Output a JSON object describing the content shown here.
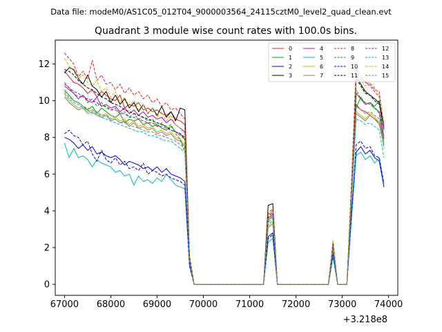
{
  "chart_data": {
    "type": "line",
    "suptitle": "Data file: modeM0/AS1C05_012T04_9000003564_24115cztM0_level2_quad_clean.evt",
    "title": "Quadrant 3 module wise count rates with 100.0s bins.",
    "xlabel": "",
    "ylabel": "",
    "x_offset_label": "+3.218e8",
    "xlim": [
      66800,
      74200
    ],
    "ylim": [
      -0.6,
      13.3
    ],
    "xticks": [
      67000,
      68000,
      69000,
      70000,
      71000,
      72000,
      73000,
      74000
    ],
    "yticks": [
      0,
      2,
      4,
      6,
      8,
      10,
      12
    ],
    "legend_position": "top-right",
    "legend_columns": 4,
    "x": [
      67000,
      67100,
      67200,
      67300,
      67400,
      67500,
      67600,
      67700,
      67800,
      67900,
      68000,
      68100,
      68200,
      68300,
      68400,
      68500,
      68600,
      68700,
      68800,
      68900,
      69000,
      69100,
      69200,
      69300,
      69400,
      69500,
      69600,
      69700,
      69800,
      69900,
      70000,
      70100,
      70200,
      70300,
      70400,
      70500,
      70600,
      70700,
      70800,
      70900,
      71000,
      71100,
      71200,
      71300,
      71400,
      71500,
      71600,
      71700,
      71800,
      71900,
      72000,
      72100,
      72200,
      72300,
      72400,
      72500,
      72600,
      72700,
      72800,
      72900,
      73000,
      73100,
      73200,
      73300,
      73400,
      73500,
      73600,
      73700,
      73800,
      73900
    ],
    "series": [
      {
        "name": "0",
        "color": "#e31a1c",
        "dash": "solid",
        "values": [
          11.6,
          11.3,
          11.0,
          10.9,
          10.7,
          10.4,
          10.6,
          10.2,
          10.5,
          10.3,
          10.1,
          10.0,
          10.3,
          9.6,
          9.8,
          9.7,
          9.9,
          9.5,
          9.6,
          9.4,
          9.5,
          9.3,
          9.2,
          9.4,
          9.0,
          8.9,
          8.7,
          1.5,
          0,
          0,
          0,
          0,
          0,
          0,
          0,
          0,
          0,
          0,
          0,
          0,
          0,
          0,
          0,
          0,
          3.8,
          4.0,
          0,
          0,
          0,
          0,
          0,
          0,
          0,
          0,
          0,
          0,
          0,
          0,
          2.2,
          0,
          0,
          0,
          5.2,
          9.8,
          9.5,
          9.4,
          9.2,
          9.0,
          8.8,
          8.1
        ]
      },
      {
        "name": "1",
        "color": "#00a000",
        "dash": "solid",
        "values": [
          10.6,
          10.3,
          10.0,
          9.9,
          9.7,
          9.5,
          9.7,
          9.3,
          9.6,
          9.4,
          9.2,
          9.1,
          9.3,
          8.8,
          9.0,
          8.9,
          9.0,
          8.7,
          8.8,
          8.6,
          8.7,
          8.5,
          8.4,
          8.6,
          8.3,
          8.2,
          7.9,
          1.4,
          0,
          0,
          0,
          0,
          0,
          0,
          0,
          0,
          0,
          0,
          0,
          0,
          0,
          0,
          0,
          0,
          3.5,
          3.7,
          0,
          0,
          0,
          0,
          0,
          0,
          0,
          0,
          0,
          0,
          0,
          0,
          2.1,
          0,
          0,
          0,
          4.9,
          9.6,
          10.2,
          9.8,
          9.9,
          9.7,
          10.0,
          7.9
        ]
      },
      {
        "name": "2",
        "color": "#0000e0",
        "dash": "solid",
        "values": [
          8.0,
          7.9,
          7.7,
          7.4,
          7.6,
          7.3,
          7.5,
          7.1,
          7.2,
          7.0,
          6.9,
          7.0,
          6.8,
          6.5,
          6.7,
          6.6,
          6.5,
          6.3,
          6.4,
          6.2,
          6.4,
          6.1,
          6.3,
          6.0,
          5.9,
          5.8,
          5.6,
          1.1,
          0,
          0,
          0,
          0,
          0,
          0,
          0,
          0,
          0,
          0,
          0,
          0,
          0,
          0,
          0,
          0,
          2.6,
          2.8,
          0,
          0,
          0,
          0,
          0,
          0,
          0,
          0,
          0,
          0,
          0,
          0,
          1.7,
          0,
          0,
          0,
          3.9,
          7.2,
          7.5,
          7.1,
          7.3,
          6.9,
          6.7,
          5.3
        ]
      },
      {
        "name": "3",
        "color": "#000000",
        "dash": "solid",
        "values": [
          11.5,
          11.8,
          11.7,
          11.2,
          10.9,
          11.4,
          10.8,
          10.6,
          10.2,
          10.5,
          9.9,
          10.3,
          9.8,
          10.1,
          9.6,
          9.9,
          9.4,
          9.8,
          9.3,
          9.6,
          9.2,
          9.7,
          9.1,
          9.4,
          8.9,
          9.6,
          9.5,
          1.5,
          0,
          0,
          0,
          0,
          0,
          0,
          0,
          0,
          0,
          0,
          0,
          0,
          0,
          0,
          0,
          0,
          4.3,
          4.4,
          0,
          0,
          0,
          0,
          0,
          0,
          0,
          0,
          0,
          0,
          0,
          0,
          2.3,
          0,
          0,
          0,
          5.4,
          11.4,
          10.9,
          10.5,
          10.3,
          10.1,
          9.9,
          8.6
        ]
      },
      {
        "name": "4",
        "color": "#c000c0",
        "dash": "solid",
        "values": [
          10.8,
          10.6,
          10.4,
          10.1,
          10.3,
          10.0,
          9.9,
          10.2,
          9.7,
          9.8,
          9.6,
          9.7,
          9.4,
          9.6,
          9.3,
          9.5,
          9.2,
          9.4,
          9.1,
          9.2,
          9.0,
          9.1,
          8.8,
          9.0,
          8.7,
          8.5,
          8.3,
          1.4,
          0,
          0,
          0,
          0,
          0,
          0,
          0,
          0,
          0,
          0,
          0,
          0,
          0,
          0,
          0,
          0,
          3.6,
          3.8,
          0,
          0,
          0,
          0,
          0,
          0,
          0,
          0,
          0,
          0,
          0,
          0,
          2.1,
          0,
          0,
          0,
          5.0,
          10.4,
          10.1,
          9.8,
          9.9,
          9.6,
          9.4,
          8.0
        ]
      },
      {
        "name": "5",
        "color": "#00b8b8",
        "dash": "solid",
        "values": [
          7.7,
          6.9,
          7.4,
          6.9,
          7.0,
          6.8,
          6.4,
          6.8,
          6.6,
          6.5,
          6.4,
          6.1,
          6.2,
          5.9,
          6.0,
          5.4,
          5.9,
          5.6,
          5.7,
          5.5,
          5.8,
          5.6,
          6.0,
          5.7,
          5.4,
          5.3,
          5.2,
          1.0,
          0,
          0,
          0,
          0,
          0,
          0,
          0,
          0,
          0,
          0,
          0,
          0,
          0,
          0,
          0,
          0,
          2.3,
          2.5,
          0,
          0,
          0,
          0,
          0,
          0,
          0,
          0,
          0,
          0,
          0,
          0,
          1.5,
          0,
          0,
          0,
          3.6,
          7.0,
          7.2,
          6.8,
          7.0,
          6.6,
          6.9,
          5.4
        ]
      },
      {
        "name": "6",
        "color": "#c8b400",
        "dash": "solid",
        "values": [
          10.3,
          10.0,
          9.8,
          9.6,
          9.7,
          9.4,
          9.5,
          9.3,
          9.2,
          9.3,
          9.0,
          9.1,
          8.9,
          9.0,
          8.7,
          8.9,
          8.6,
          8.7,
          8.5,
          8.6,
          8.3,
          8.4,
          8.2,
          8.3,
          8.0,
          7.9,
          7.6,
          1.3,
          0,
          0,
          0,
          0,
          0,
          0,
          0,
          0,
          0,
          0,
          0,
          0,
          0,
          0,
          0,
          0,
          3.2,
          3.4,
          0,
          0,
          0,
          0,
          0,
          0,
          0,
          0,
          0,
          0,
          0,
          0,
          2.0,
          0,
          0,
          0,
          4.7,
          9.4,
          9.2,
          9.0,
          9.3,
          9.1,
          8.8,
          7.7
        ]
      },
      {
        "name": "7",
        "color": "#808080",
        "dash": "solid",
        "values": [
          10.2,
          9.9,
          9.7,
          9.5,
          9.6,
          9.3,
          9.4,
          9.2,
          9.1,
          9.2,
          8.9,
          9.0,
          8.8,
          8.9,
          8.6,
          8.8,
          8.5,
          8.6,
          8.4,
          8.5,
          8.2,
          8.3,
          8.1,
          8.2,
          7.9,
          7.8,
          7.5,
          1.3,
          0,
          0,
          0,
          0,
          0,
          0,
          0,
          0,
          0,
          0,
          0,
          0,
          0,
          0,
          0,
          0,
          3.1,
          3.3,
          0,
          0,
          0,
          0,
          0,
          0,
          0,
          0,
          0,
          0,
          0,
          0,
          1.9,
          0,
          0,
          0,
          4.6,
          9.3,
          9.1,
          8.9,
          9.2,
          9.0,
          8.7,
          7.6
        ]
      },
      {
        "name": "8",
        "color": "#e31a1c",
        "dash": "dashed",
        "values": [
          12.6,
          12.3,
          12.0,
          11.3,
          11.6,
          11.2,
          12.2,
          11.1,
          11.4,
          10.9,
          11.0,
          10.6,
          10.9,
          10.4,
          10.7,
          10.3,
          10.5,
          10.1,
          10.3,
          9.9,
          10.1,
          9.7,
          9.9,
          9.5,
          9.6,
          9.3,
          9.0,
          1.6,
          0,
          0,
          0,
          0,
          0,
          0,
          0,
          0,
          0,
          0,
          0,
          0,
          0,
          0,
          0,
          0,
          3.9,
          4.1,
          0,
          0,
          0,
          0,
          0,
          0,
          0,
          0,
          0,
          0,
          0,
          0,
          2.3,
          0,
          0,
          0,
          5.6,
          11.9,
          11.4,
          11.0,
          10.8,
          10.5,
          10.2,
          8.8
        ]
      },
      {
        "name": "9",
        "color": "#00a000",
        "dash": "dashed",
        "values": [
          11.0,
          10.7,
          10.4,
          10.2,
          10.3,
          9.9,
          10.1,
          9.7,
          9.9,
          9.6,
          9.5,
          9.6,
          9.3,
          9.4,
          9.1,
          9.3,
          9.0,
          9.1,
          8.9,
          9.0,
          8.6,
          8.8,
          8.5,
          8.7,
          8.2,
          7.9,
          7.2,
          1.4,
          0,
          0,
          0,
          0,
          0,
          0,
          0,
          0,
          0,
          0,
          0,
          0,
          0,
          0,
          0,
          0,
          3.5,
          3.7,
          0,
          0,
          0,
          0,
          0,
          0,
          0,
          0,
          0,
          0,
          0,
          0,
          2.1,
          0,
          0,
          0,
          5.0,
          10.6,
          10.1,
          9.9,
          9.8,
          9.6,
          9.3,
          7.4
        ]
      },
      {
        "name": "10",
        "color": "#0000e0",
        "dash": "dashed",
        "values": [
          8.2,
          8.4,
          8.1,
          8.0,
          7.6,
          7.8,
          7.1,
          6.7,
          7.3,
          6.8,
          6.6,
          6.9,
          6.5,
          6.7,
          6.3,
          6.4,
          6.2,
          6.6,
          6.0,
          6.2,
          6.1,
          5.9,
          6.0,
          5.8,
          5.7,
          5.6,
          5.4,
          1.0,
          0,
          0,
          0,
          0,
          0,
          0,
          0,
          0,
          0,
          0,
          0,
          0,
          0,
          0,
          0,
          0,
          2.5,
          2.7,
          0,
          0,
          0,
          0,
          0,
          0,
          0,
          0,
          0,
          0,
          0,
          0,
          1.6,
          0,
          0,
          0,
          3.8,
          7.6,
          7.8,
          7.4,
          7.5,
          7.0,
          6.9,
          5.5
        ]
      },
      {
        "name": "11",
        "color": "#000000",
        "dash": "dashed",
        "values": [
          11.7,
          11.6,
          11.4,
          11.1,
          10.9,
          10.7,
          10.6,
          10.4,
          10.2,
          10.1,
          9.9,
          9.8,
          9.7,
          9.5,
          9.4,
          9.3,
          9.2,
          9.1,
          9.0,
          8.9,
          8.8,
          8.7,
          8.6,
          8.4,
          8.3,
          8.2,
          8.0,
          1.4,
          0,
          0,
          0,
          0,
          0,
          0,
          0,
          0,
          0,
          0,
          0,
          0,
          0,
          0,
          0,
          0,
          3.7,
          3.9,
          0,
          0,
          0,
          0,
          0,
          0,
          0,
          0,
          0,
          0,
          0,
          0,
          2.2,
          0,
          0,
          0,
          5.3,
          11.2,
          10.8,
          10.4,
          10.3,
          10.0,
          9.8,
          8.5
        ]
      },
      {
        "name": "12",
        "color": "#c000c0",
        "dash": "dashed",
        "values": [
          10.9,
          10.7,
          10.5,
          10.4,
          10.2,
          10.1,
          10.0,
          9.9,
          9.7,
          9.7,
          9.5,
          9.5,
          9.3,
          9.3,
          9.1,
          9.1,
          9.0,
          8.9,
          8.8,
          8.8,
          8.6,
          8.6,
          8.5,
          8.4,
          8.3,
          8.1,
          7.9,
          1.4,
          0,
          0,
          0,
          0,
          0,
          0,
          0,
          0,
          0,
          0,
          0,
          0,
          0,
          0,
          0,
          0,
          3.6,
          3.8,
          0,
          0,
          0,
          0,
          0,
          0,
          0,
          0,
          0,
          0,
          0,
          0,
          2.1,
          0,
          0,
          0,
          5.1,
          11.7,
          11.3,
          11.0,
          10.9,
          10.6,
          10.5,
          8.4
        ]
      },
      {
        "name": "13",
        "color": "#00b8b8",
        "dash": "dashed",
        "values": [
          10.4,
          10.1,
          9.9,
          9.8,
          9.6,
          9.5,
          9.3,
          9.3,
          9.1,
          9.0,
          8.9,
          8.8,
          8.7,
          8.6,
          8.5,
          8.4,
          8.3,
          8.3,
          8.1,
          8.1,
          8.0,
          7.9,
          7.8,
          7.8,
          7.6,
          7.4,
          7.2,
          1.3,
          0,
          0,
          0,
          0,
          0,
          0,
          0,
          0,
          0,
          0,
          0,
          0,
          0,
          0,
          0,
          0,
          3.3,
          3.5,
          0,
          0,
          0,
          0,
          0,
          0,
          0,
          0,
          0,
          0,
          0,
          0,
          1.9,
          0,
          0,
          0,
          4.6,
          9.0,
          8.9,
          8.7,
          8.8,
          8.6,
          8.4,
          6.9
        ]
      },
      {
        "name": "14",
        "color": "#c8b400",
        "dash": "dashed",
        "values": [
          12.3,
          11.9,
          11.6,
          11.2,
          11.4,
          11.0,
          10.8,
          11.1,
          10.5,
          10.7,
          10.2,
          10.5,
          9.9,
          10.2,
          9.7,
          10.0,
          9.5,
          9.8,
          9.3,
          9.6,
          9.1,
          9.4,
          8.9,
          9.2,
          8.7,
          8.5,
          8.2,
          1.5,
          0,
          0,
          0,
          0,
          0,
          0,
          0,
          0,
          0,
          0,
          0,
          0,
          0,
          0,
          0,
          0,
          3.8,
          4.0,
          0,
          0,
          0,
          0,
          0,
          0,
          0,
          0,
          0,
          0,
          0,
          0,
          2.4,
          0,
          0,
          0,
          5.5,
          11.5,
          11.1,
          10.8,
          11.0,
          10.7,
          10.3,
          8.7
        ]
      },
      {
        "name": "15",
        "color": "#808080",
        "dash": "dashed",
        "values": [
          10.5,
          10.2,
          10.0,
          9.9,
          9.7,
          9.6,
          9.5,
          9.4,
          9.2,
          9.2,
          9.0,
          9.0,
          8.8,
          8.8,
          8.6,
          8.6,
          8.5,
          8.4,
          8.3,
          8.3,
          8.1,
          8.1,
          8.0,
          7.9,
          7.8,
          7.6,
          7.4,
          1.3,
          0,
          0,
          0,
          0,
          0,
          0,
          0,
          0,
          0,
          0,
          0,
          0,
          0,
          0,
          0,
          0,
          3.4,
          3.6,
          0,
          0,
          0,
          0,
          0,
          0,
          0,
          0,
          0,
          0,
          0,
          0,
          2.0,
          0,
          0,
          0,
          4.8,
          9.7,
          9.5,
          9.3,
          9.4,
          9.2,
          9.0,
          7.8
        ]
      }
    ]
  }
}
